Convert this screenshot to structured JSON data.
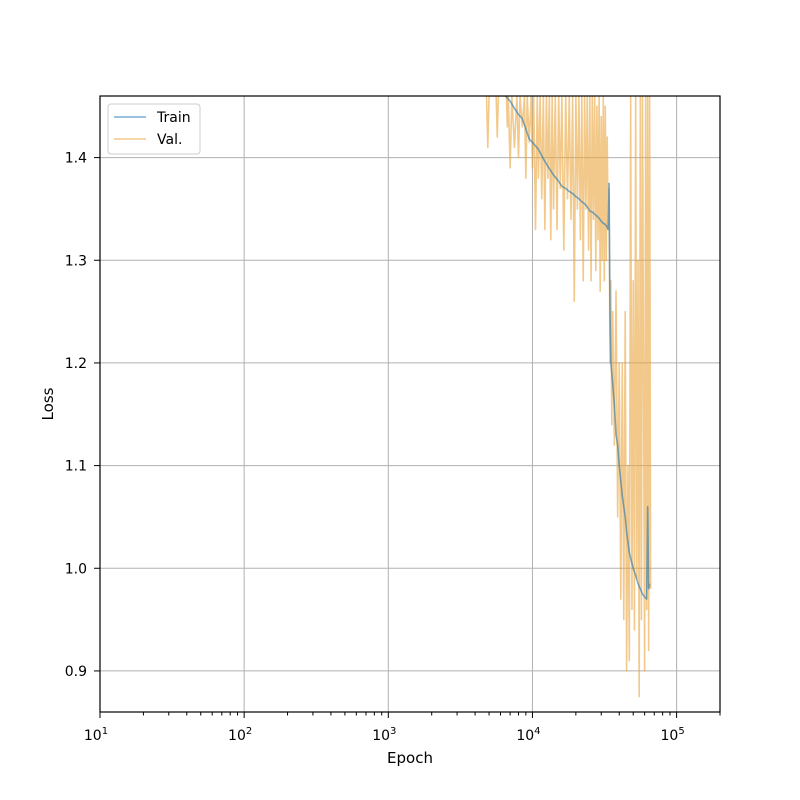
{
  "chart_data": {
    "type": "line",
    "title": "",
    "xlabel": "Epoch",
    "ylabel": "Loss",
    "x_scale": "log",
    "xlim": [
      10,
      200000
    ],
    "ylim": [
      0.86,
      1.46
    ],
    "grid": true,
    "legend_position": "top-left",
    "x_ticks": [
      {
        "value": 10,
        "base": "10",
        "exp": "1"
      },
      {
        "value": 100,
        "base": "10",
        "exp": "2"
      },
      {
        "value": 1000,
        "base": "10",
        "exp": "3"
      },
      {
        "value": 10000,
        "base": "10",
        "exp": "4"
      },
      {
        "value": 100000,
        "base": "10",
        "exp": "5"
      }
    ],
    "y_ticks": [
      {
        "value": 0.9,
        "label": "0.9"
      },
      {
        "value": 1.0,
        "label": "1.0"
      },
      {
        "value": 1.1,
        "label": "1.1"
      },
      {
        "value": 1.2,
        "label": "1.2"
      },
      {
        "value": 1.3,
        "label": "1.3"
      },
      {
        "value": 1.4,
        "label": "1.4"
      }
    ],
    "series": [
      {
        "name": "Train",
        "color": "#1f77b4",
        "points": [
          [
            6500,
            1.46
          ],
          [
            7000,
            1.455
          ],
          [
            7500,
            1.448
          ],
          [
            8000,
            1.442
          ],
          [
            8500,
            1.438
          ],
          [
            9000,
            1.428
          ],
          [
            9500,
            1.418
          ],
          [
            10000,
            1.415
          ],
          [
            11000,
            1.408
          ],
          [
            12000,
            1.398
          ],
          [
            13000,
            1.39
          ],
          [
            14000,
            1.383
          ],
          [
            15000,
            1.378
          ],
          [
            16000,
            1.372
          ],
          [
            17000,
            1.37
          ],
          [
            18000,
            1.367
          ],
          [
            19000,
            1.365
          ],
          [
            20000,
            1.362
          ],
          [
            21000,
            1.36
          ],
          [
            22000,
            1.357
          ],
          [
            23000,
            1.355
          ],
          [
            24000,
            1.352
          ],
          [
            25000,
            1.348
          ],
          [
            26000,
            1.347
          ],
          [
            27000,
            1.345
          ],
          [
            28000,
            1.343
          ],
          [
            29000,
            1.341
          ],
          [
            30000,
            1.338
          ],
          [
            31000,
            1.336
          ],
          [
            32000,
            1.335
          ],
          [
            33000,
            1.332
          ],
          [
            33500,
            1.33
          ],
          [
            34000,
            1.375
          ],
          [
            34500,
            1.25
          ],
          [
            35000,
            1.2
          ],
          [
            36000,
            1.18
          ],
          [
            37000,
            1.16
          ],
          [
            38000,
            1.13
          ],
          [
            39000,
            1.12
          ],
          [
            40000,
            1.1
          ],
          [
            41000,
            1.085
          ],
          [
            42000,
            1.07
          ],
          [
            43000,
            1.06
          ],
          [
            44000,
            1.05
          ],
          [
            45000,
            1.035
          ],
          [
            46000,
            1.025
          ],
          [
            47000,
            1.015
          ],
          [
            48000,
            1.01
          ],
          [
            50000,
            1.0
          ],
          [
            52000,
            0.993
          ],
          [
            54000,
            0.985
          ],
          [
            56000,
            0.98
          ],
          [
            58000,
            0.975
          ],
          [
            60000,
            0.972
          ],
          [
            62000,
            0.97
          ],
          [
            63000,
            1.06
          ],
          [
            64000,
            0.98
          ],
          [
            65000,
            0.985
          ]
        ]
      },
      {
        "name": "Val.",
        "color": "#e9a53c",
        "points": [
          [
            4800,
            1.46
          ],
          [
            4900,
            1.41
          ],
          [
            5000,
            1.46
          ],
          [
            5600,
            1.46
          ],
          [
            5700,
            1.42
          ],
          [
            5800,
            1.46
          ],
          [
            6600,
            1.46
          ],
          [
            6700,
            1.43
          ],
          [
            6800,
            1.46
          ],
          [
            7000,
            1.39
          ],
          [
            7200,
            1.46
          ],
          [
            7500,
            1.41
          ],
          [
            7800,
            1.46
          ],
          [
            8000,
            1.4
          ],
          [
            8200,
            1.46
          ],
          [
            8500,
            1.43
          ],
          [
            8800,
            1.46
          ],
          [
            9000,
            1.38
          ],
          [
            9200,
            1.46
          ],
          [
            9500,
            1.415
          ],
          [
            9800,
            1.46
          ],
          [
            10000,
            1.39
          ],
          [
            10200,
            1.46
          ],
          [
            10500,
            1.33
          ],
          [
            10800,
            1.46
          ],
          [
            11000,
            1.38
          ],
          [
            11300,
            1.46
          ],
          [
            11600,
            1.36
          ],
          [
            11900,
            1.46
          ],
          [
            12200,
            1.33
          ],
          [
            12500,
            1.46
          ],
          [
            12800,
            1.38
          ],
          [
            13100,
            1.46
          ],
          [
            13400,
            1.32
          ],
          [
            13700,
            1.46
          ],
          [
            14000,
            1.35
          ],
          [
            14400,
            1.46
          ],
          [
            14800,
            1.33
          ],
          [
            15200,
            1.46
          ],
          [
            15600,
            1.37
          ],
          [
            16000,
            1.46
          ],
          [
            16500,
            1.31
          ],
          [
            17000,
            1.46
          ],
          [
            17500,
            1.36
          ],
          [
            18000,
            1.46
          ],
          [
            18500,
            1.34
          ],
          [
            19000,
            1.46
          ],
          [
            19500,
            1.26
          ],
          [
            20000,
            1.46
          ],
          [
            20500,
            1.35
          ],
          [
            21000,
            1.46
          ],
          [
            21500,
            1.32
          ],
          [
            22000,
            1.46
          ],
          [
            22500,
            1.28
          ],
          [
            23000,
            1.46
          ],
          [
            23500,
            1.35
          ],
          [
            24000,
            1.46
          ],
          [
            24500,
            1.31
          ],
          [
            25000,
            1.46
          ],
          [
            25500,
            1.28
          ],
          [
            26000,
            1.46
          ],
          [
            26500,
            1.34
          ],
          [
            27000,
            1.46
          ],
          [
            27500,
            1.29
          ],
          [
            28000,
            1.45
          ],
          [
            28500,
            1.32
          ],
          [
            29000,
            1.46
          ],
          [
            29500,
            1.27
          ],
          [
            30000,
            1.44
          ],
          [
            30500,
            1.3
          ],
          [
            31000,
            1.46
          ],
          [
            31500,
            1.28
          ],
          [
            32000,
            1.45
          ],
          [
            32500,
            1.3
          ],
          [
            33000,
            1.42
          ],
          [
            33500,
            1.33
          ],
          [
            34000,
            1.37
          ],
          [
            34500,
            1.2
          ],
          [
            35000,
            1.28
          ],
          [
            35500,
            1.14
          ],
          [
            36000,
            1.25
          ],
          [
            37000,
            1.12
          ],
          [
            38000,
            1.27
          ],
          [
            39000,
            1.05
          ],
          [
            40000,
            1.2
          ],
          [
            41000,
            0.97
          ],
          [
            42000,
            1.2
          ],
          [
            43000,
            0.95
          ],
          [
            44000,
            1.25
          ],
          [
            45000,
            0.9
          ],
          [
            46000,
            1.1
          ],
          [
            47000,
            0.91
          ],
          [
            48000,
            1.46
          ],
          [
            49000,
            0.96
          ],
          [
            50000,
            1.28
          ],
          [
            51000,
            0.94
          ],
          [
            52000,
            1.46
          ],
          [
            53000,
            0.99
          ],
          [
            54000,
            1.3
          ],
          [
            55000,
            0.875
          ],
          [
            56000,
            1.46
          ],
          [
            57000,
            0.95
          ],
          [
            58000,
            1.46
          ],
          [
            60000,
            0.9
          ],
          [
            61000,
            1.46
          ],
          [
            62000,
            0.96
          ],
          [
            63000,
            1.46
          ],
          [
            64000,
            0.92
          ],
          [
            65000,
            1.46
          ],
          [
            66000,
            0.98
          ]
        ]
      }
    ]
  }
}
